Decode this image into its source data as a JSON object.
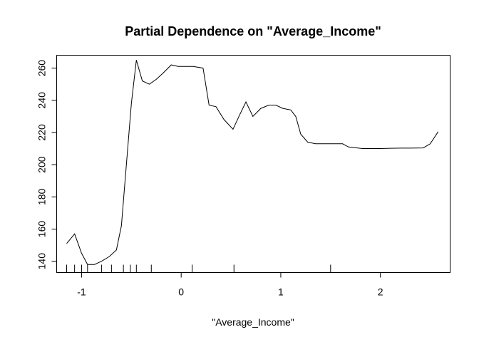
{
  "chart_data": {
    "type": "line",
    "title": "Partial Dependence on \"Average_Income\"",
    "xlabel": "\"Average_Income\"",
    "ylabel": "",
    "xlim": [
      -1.25,
      2.7
    ],
    "ylim": [
      133,
      268
    ],
    "x_ticks": [
      -1,
      0,
      1,
      2
    ],
    "x_tick_labels": [
      "-1",
      "0",
      "1",
      "2"
    ],
    "y_ticks": [
      140,
      160,
      180,
      200,
      220,
      240,
      260
    ],
    "y_tick_labels": [
      "140",
      "160",
      "180",
      "200",
      "220",
      "240",
      "260"
    ],
    "grid": false,
    "series": [
      {
        "x": [
          -1.15,
          -1.07,
          -1.0,
          -0.94,
          -0.87,
          -0.8,
          -0.72,
          -0.65,
          -0.6,
          -0.55,
          -0.5,
          -0.45,
          -0.39,
          -0.32,
          -0.25,
          -0.18,
          -0.1,
          -0.03,
          0.05,
          0.12,
          0.22,
          0.28,
          0.35,
          0.43,
          0.52,
          0.58,
          0.65,
          0.72,
          0.8,
          0.88,
          0.95,
          1.02,
          1.1,
          1.15,
          1.2,
          1.27,
          1.35,
          1.45,
          1.55,
          1.62,
          1.68,
          1.75,
          1.82,
          1.9,
          2.0,
          2.1,
          2.2,
          2.3,
          2.43,
          2.5,
          2.58
        ],
        "y": [
          151,
          157,
          145,
          138,
          138,
          140,
          143,
          147,
          162,
          200,
          238,
          265,
          252,
          250,
          253,
          257,
          262,
          261,
          261,
          261,
          260,
          237,
          236,
          228,
          222,
          230,
          239,
          230,
          235,
          237,
          237,
          235,
          234,
          230,
          219,
          214,
          213,
          213,
          213,
          213,
          211,
          210.5,
          210,
          210,
          210,
          210.2,
          210.3,
          210.3,
          210.4,
          213,
          220.5
        ]
      }
    ],
    "rug": [
      -1.15,
      -1.07,
      -1.0,
      -0.94,
      -0.8,
      -0.7,
      -0.58,
      -0.51,
      -0.45,
      -0.3,
      0.11,
      0.53,
      1.5
    ]
  }
}
